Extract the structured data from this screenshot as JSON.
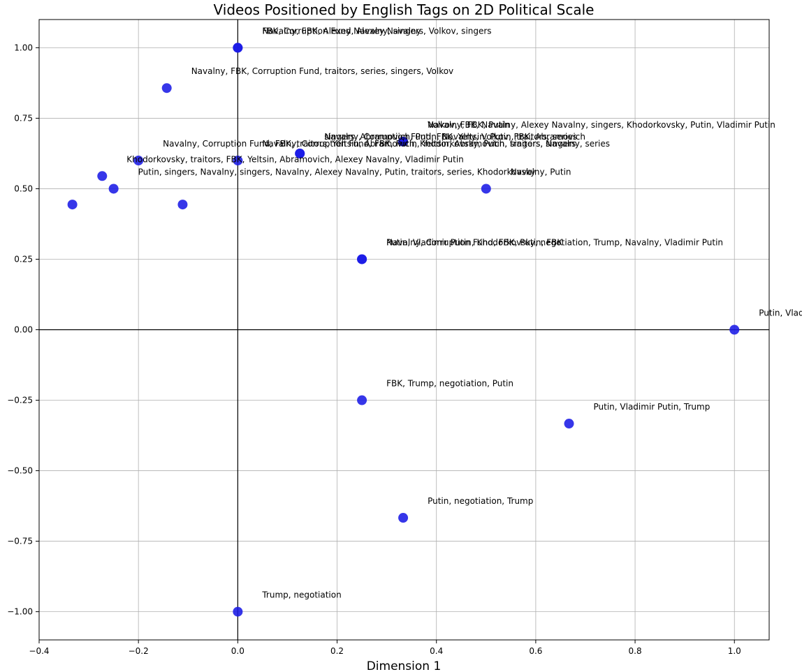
{
  "chart_data": {
    "type": "scatter",
    "title": "Videos Positioned by English Tags on 2D Political Scale",
    "xlabel": "Dimension 1",
    "ylabel": "",
    "xlim": [
      -0.4,
      1.07
    ],
    "ylim": [
      -1.1,
      1.1
    ],
    "xticks": [
      -0.4,
      -0.2,
      0.0,
      0.2,
      0.4,
      0.6,
      0.8,
      1.0
    ],
    "xtick_labels": [
      "−0.4",
      "−0.2",
      "0.0",
      "0.2",
      "0.4",
      "0.6",
      "0.8",
      "1.0"
    ],
    "yticks": [
      -1.0,
      -0.75,
      -0.5,
      -0.25,
      0.0,
      0.25,
      0.5,
      0.75,
      1.0
    ],
    "ytick_labels": [
      "−1.00",
      "−0.75",
      "−0.50",
      "−0.25",
      "0.00",
      "0.25",
      "0.50",
      "0.75",
      "1.00"
    ],
    "grid": true,
    "point_color": "#1a1ae6",
    "points": [
      {
        "x": 0.0,
        "y": 1.0,
        "label": "FBK, Corruption Fund, Alexey Navalny"
      },
      {
        "x": 0.0,
        "y": 1.0,
        "label": "Navalny, FBK, Alexey Navalny, singers, Volkov, singers"
      },
      {
        "x": -0.143,
        "y": 0.857,
        "label": "Navalny, FBK, Corruption Fund, traitors, series, singers, Volkov"
      },
      {
        "x": 0.333,
        "y": 0.667,
        "label": "Navalny, FBK, Putin"
      },
      {
        "x": 0.333,
        "y": 0.667,
        "label": "Volkov, FBK, Navalny, Alexey Navalny, singers, Khodorkovsky, Putin, Vladimir Putin"
      },
      {
        "x": 0.125,
        "y": 0.625,
        "label": "Navalny, Corruption Fund, FBK, Yeltsin, Putin, traitors, series"
      },
      {
        "x": 0.125,
        "y": 0.625,
        "label": "singers, Abramovich, Putin, Navalny, Volkov, FBK, Abramovich"
      },
      {
        "x": -0.2,
        "y": 0.6,
        "label": "Navalny, Corruption Fund, FBK, traitors, Yeltsin, Abramovich, Khodorkovsky, Putin, singers, Navalny, series"
      },
      {
        "x": 0.0,
        "y": 0.6,
        "label": "Navalny, Corruption Fund, FBK, Putin, Yeltsin, Abramovich, traitors, singers"
      },
      {
        "x": -0.273,
        "y": 0.545,
        "label": "Khodorkovsky, traitors, FBK, Yeltsin, Abramovich, Alexey Navalny, Vladimir Putin"
      },
      {
        "x": 0.5,
        "y": 0.5,
        "label": "Navalny, Putin"
      },
      {
        "x": -0.25,
        "y": 0.5,
        "label": "Putin, singers, Navalny, singers, Navalny, Alexey Navalny, Putin, traitors, series, Khodorkovsky"
      },
      {
        "x": -0.333,
        "y": 0.444,
        "label": ""
      },
      {
        "x": -0.111,
        "y": 0.444,
        "label": ""
      },
      {
        "x": 0.25,
        "y": 0.25,
        "label": "Navalny, Corruption Fund, FBK, Putin, FBK"
      },
      {
        "x": 0.25,
        "y": 0.25,
        "label": "Putin, Vladimir Putin, Khodorkovsky, negotiation, Trump, Navalny, Vladimir Putin"
      },
      {
        "x": 1.0,
        "y": 0.0,
        "label": "Putin, Vladimir Putin"
      },
      {
        "x": 0.25,
        "y": -0.25,
        "label": "FBK, Trump, negotiation, Putin"
      },
      {
        "x": 0.667,
        "y": -0.333,
        "label": "Putin, Vladimir Putin, Trump"
      },
      {
        "x": 0.333,
        "y": -0.667,
        "label": "Putin, negotiation, Trump"
      },
      {
        "x": 0.0,
        "y": -1.0,
        "label": "Trump, negotiation"
      }
    ]
  }
}
